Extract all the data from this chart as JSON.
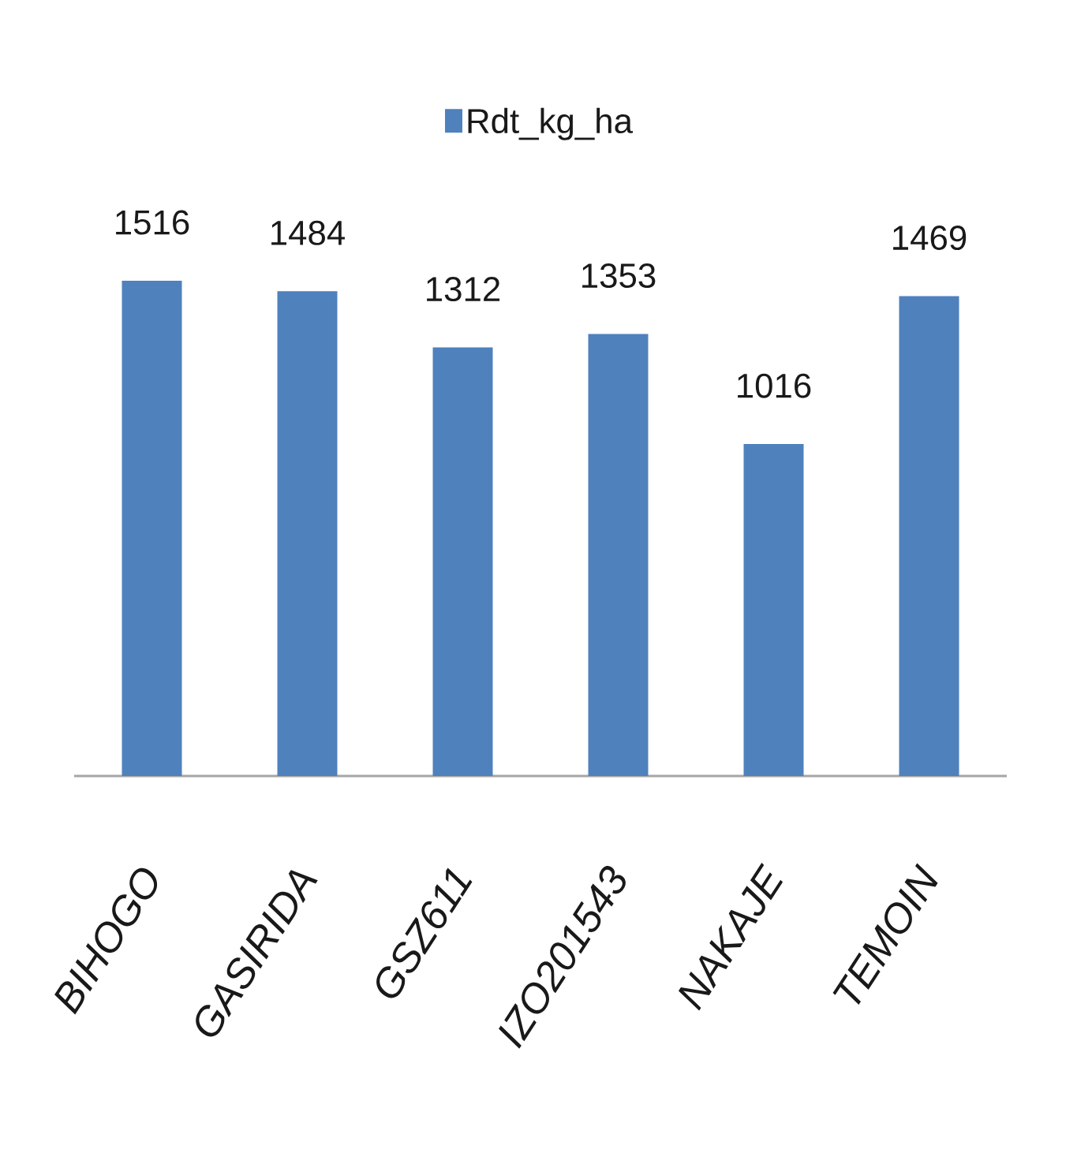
{
  "chart_data": {
    "type": "bar",
    "categories": [
      "BIHOGO",
      "GASIRIDA",
      "GSZ611",
      "IZO201543",
      "NAKAJE",
      "TEMOIN"
    ],
    "series": [
      {
        "name": "Rdt_kg_ha",
        "color": "#4f81bd",
        "values": [
          1516,
          1484,
          1312,
          1353,
          1016,
          1469
        ]
      }
    ],
    "data_labels": true,
    "legend": "top"
  }
}
